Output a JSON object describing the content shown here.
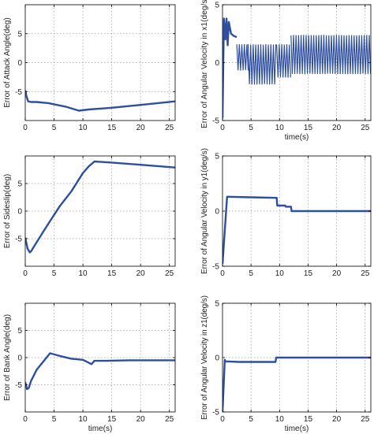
{
  "chart_data": [
    {
      "type": "line",
      "xlabel": "",
      "ylabel": "Error of Attack Angle(deg)",
      "xlim": [
        0,
        26
      ],
      "ylim": [
        -10,
        10
      ],
      "xticks": [
        0,
        5,
        10,
        15,
        20,
        25
      ],
      "yticks": [
        -5,
        0,
        5
      ],
      "grid": true,
      "series": [
        {
          "color": "#2e4fa0",
          "x": [
            0,
            0.2,
            0.5,
            1,
            2,
            4,
            7,
            9.3,
            11,
            15,
            20,
            26
          ],
          "y": [
            -4.8,
            -5.8,
            -6.7,
            -6.8,
            -6.8,
            -7.0,
            -7.6,
            -8.3,
            -8.1,
            -7.8,
            -7.3,
            -6.7
          ]
        }
      ]
    },
    {
      "type": "line",
      "xlabel": "time(s)",
      "ylabel": "Error of Angular Velocity in x1(deg/s)",
      "xlim": [
        0,
        26
      ],
      "ylim": [
        -5,
        5
      ],
      "xticks": [
        0,
        5,
        10,
        15,
        20,
        25
      ],
      "yticks": [
        -5,
        0,
        5
      ],
      "grid": true,
      "series": [
        {
          "color": "#2e4fa0",
          "x": [
            0,
            0.25,
            0.5,
            0.7,
            0.9,
            1.1,
            1.5,
            2.0,
            2.5
          ],
          "y": [
            -4.8,
            3.8,
            2.0,
            3.8,
            1.5,
            3.5,
            2.5,
            2.3,
            2.2
          ]
        }
      ],
      "oscillation_bands": [
        {
          "x_start": 2.5,
          "x_end": 4.5,
          "y_high": 1.6,
          "y_low": -0.7
        },
        {
          "x_start": 4.5,
          "x_end": 9.5,
          "y_high": 1.6,
          "y_low": -1.9
        },
        {
          "x_start": 9.5,
          "x_end": 12,
          "y_high": 1.6,
          "y_low": -1.3
        },
        {
          "x_start": 12,
          "x_end": 26,
          "y_high": 2.4,
          "y_low": -1.0
        }
      ]
    },
    {
      "type": "line",
      "xlabel": "",
      "ylabel": "Error of Sideslip(deg)",
      "xlim": [
        0,
        26
      ],
      "ylim": [
        -10,
        10
      ],
      "xticks": [
        0,
        5,
        10,
        15,
        20,
        25
      ],
      "yticks": [
        -5,
        0,
        5
      ],
      "grid": true,
      "series": [
        {
          "color": "#2e4fa0",
          "x": [
            0,
            0.4,
            0.8,
            1.0,
            2,
            4,
            6,
            8,
            10,
            11,
            12,
            15,
            20,
            26
          ],
          "y": [
            -4.8,
            -6.8,
            -7.5,
            -7.3,
            -5.6,
            -2.3,
            0.9,
            3.6,
            6.9,
            8.1,
            9.0,
            8.8,
            8.4,
            7.9
          ]
        }
      ]
    },
    {
      "type": "line",
      "xlabel": "",
      "ylabel": "Error of Angular Velocity in y1(deg/s)",
      "xlim": [
        0,
        26
      ],
      "ylim": [
        -5,
        5
      ],
      "xticks": [
        0,
        5,
        10,
        15,
        20,
        25
      ],
      "yticks": [
        -5,
        0,
        5
      ],
      "grid": true,
      "series": [
        {
          "color": "#2e4fa0",
          "x": [
            0,
            0.8,
            1.0,
            5,
            9.5,
            9.6,
            11,
            11.1,
            12,
            12.1,
            26
          ],
          "y": [
            -4.8,
            1.3,
            1.3,
            1.25,
            1.2,
            0.5,
            0.5,
            0.4,
            0.4,
            0.0,
            0.0
          ]
        }
      ]
    },
    {
      "type": "line",
      "xlabel": "time(s)",
      "ylabel": "Error of Bank Angle(deg)",
      "xlim": [
        0,
        26
      ],
      "ylim": [
        -10,
        10
      ],
      "xticks": [
        0,
        5,
        10,
        15,
        20,
        25
      ],
      "yticks": [
        -5,
        0,
        5
      ],
      "grid": true,
      "series": [
        {
          "color": "#2e4fa0",
          "x": [
            0,
            0.3,
            0.6,
            1,
            2,
            3,
            4.3,
            6,
            8,
            10,
            11.5,
            12,
            14,
            18,
            22,
            26
          ],
          "y": [
            -4.5,
            -5.8,
            -5.6,
            -4.3,
            -2.2,
            -0.9,
            0.8,
            0.3,
            -0.2,
            -0.4,
            -1.2,
            -0.6,
            -0.6,
            -0.5,
            -0.5,
            -0.5
          ]
        }
      ]
    },
    {
      "type": "line",
      "xlabel": "time(s)",
      "ylabel": "Error of Angular Velocity in z1(deg/s)",
      "xlim": [
        0,
        26
      ],
      "ylim": [
        -5,
        5
      ],
      "xticks": [
        0,
        5,
        10,
        15,
        20,
        25
      ],
      "yticks": [
        -5,
        0,
        5
      ],
      "grid": true,
      "series": [
        {
          "color": "#2e4fa0",
          "x": [
            0,
            0.4,
            0.5,
            3,
            9.3,
            9.4,
            26
          ],
          "y": [
            -5.0,
            -0.2,
            -0.35,
            -0.4,
            -0.4,
            0.0,
            0.0
          ]
        }
      ]
    }
  ]
}
